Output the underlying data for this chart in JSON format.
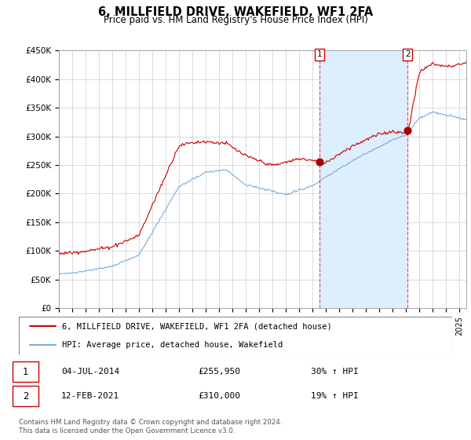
{
  "title": "6, MILLFIELD DRIVE, WAKEFIELD, WF1 2FA",
  "subtitle": "Price paid vs. HM Land Registry's House Price Index (HPI)",
  "ylim": [
    0,
    450000
  ],
  "xlim_start": 1995.0,
  "xlim_end": 2025.5,
  "red_line_color": "#cc0000",
  "blue_line_color": "#7aabdb",
  "vline_color": "#cc0000",
  "shade_color": "#ddeeff",
  "marker1_date": 2014.5,
  "marker2_date": 2021.1,
  "marker1_label": "1",
  "marker2_label": "2",
  "legend_entry1": "6, MILLFIELD DRIVE, WAKEFIELD, WF1 2FA (detached house)",
  "legend_entry2": "HPI: Average price, detached house, Wakefield",
  "table_row1": [
    "1",
    "04-JUL-2014",
    "£255,950",
    "30% ↑ HPI"
  ],
  "table_row2": [
    "2",
    "12-FEB-2021",
    "£310,000",
    "19% ↑ HPI"
  ],
  "footnote": "Contains HM Land Registry data © Crown copyright and database right 2024.\nThis data is licensed under the Open Government Licence v3.0.",
  "yticks": [
    0,
    50000,
    100000,
    150000,
    200000,
    250000,
    300000,
    350000,
    400000,
    450000
  ],
  "ytick_labels": [
    "£0",
    "£50K",
    "£100K",
    "£150K",
    "£200K",
    "£250K",
    "£300K",
    "£350K",
    "£400K",
    "£450K"
  ],
  "xticks": [
    1995,
    1996,
    1997,
    1998,
    1999,
    2000,
    2001,
    2002,
    2003,
    2004,
    2005,
    2006,
    2007,
    2008,
    2009,
    2010,
    2011,
    2012,
    2013,
    2014,
    2015,
    2016,
    2017,
    2018,
    2019,
    2020,
    2021,
    2022,
    2023,
    2024,
    2025
  ],
  "dot_color": "#aa0000",
  "dot_size": 40,
  "marker1_val": 255950,
  "marker2_val": 310000
}
